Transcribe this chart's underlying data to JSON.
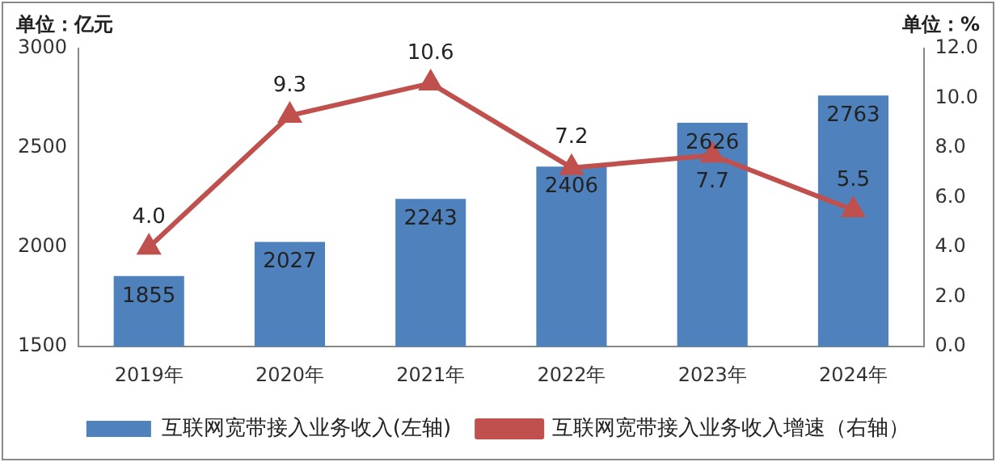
{
  "chart_data": {
    "type": "bar",
    "categories": [
      "2019年",
      "2020年",
      "2021年",
      "2022年",
      "2023年",
      "2024年"
    ],
    "series": [
      {
        "name": "互联网宽带接入业务收入(左轴)",
        "color": "#4f81bd",
        "values": [
          1855,
          2027,
          2243,
          2406,
          2626,
          2763
        ],
        "value_labels": [
          "1855",
          "2027",
          "2243",
          "2406",
          "2626",
          "2763"
        ]
      },
      {
        "name": "互联网宽带接入业务收入增速（右轴）",
        "axis": "y2",
        "type": "line",
        "color": "#c0504d",
        "values": [
          4.0,
          9.3,
          10.6,
          7.2,
          7.7,
          5.5
        ],
        "value_labels": [
          "4.0",
          "9.3",
          "10.6",
          "7.2",
          "7.7",
          "5.5"
        ]
      }
    ],
    "ylim": [
      1500,
      3000
    ],
    "yticks": [
      1500,
      2000,
      2500,
      3000
    ],
    "y2lim": [
      0,
      12
    ],
    "y2ticks": [
      {
        "value": 0,
        "label": "0.0"
      },
      {
        "value": 2,
        "label": "2.0"
      },
      {
        "value": 4,
        "label": "4.0"
      },
      {
        "value": 6,
        "label": "6.0"
      },
      {
        "value": 8,
        "label": "8.0"
      },
      {
        "value": 10,
        "label": "10.0"
      },
      {
        "value": 12,
        "label": "12.0"
      }
    ],
    "annotations": [
      "单位：亿元",
      "单位：%"
    ],
    "legend": "bottom",
    "grid": false,
    "marker": "triangle",
    "line_style": "solid"
  }
}
